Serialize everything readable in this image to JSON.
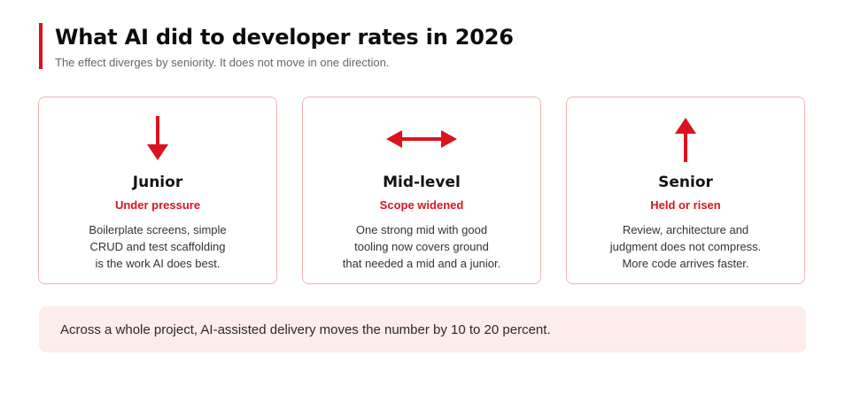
{
  "header": {
    "title": "What AI did to developer rates in 2026",
    "subtitle": "The effect diverges by seniority. It does not move in one direction."
  },
  "colors": {
    "accent": "#d9141e",
    "card_border": "#f0b3b5",
    "callout_bg": "#fdecec"
  },
  "cards": [
    {
      "icon": "arrow-down-icon",
      "label": "Junior",
      "status": "Under pressure",
      "lines": [
        "Boilerplate screens, simple",
        "CRUD and test scaffolding",
        "is the work AI does best."
      ]
    },
    {
      "icon": "arrow-left-right-icon",
      "label": "Mid-level",
      "status": "Scope widened",
      "lines": [
        "One strong mid with good",
        "tooling now covers ground",
        "that needed a mid and a junior."
      ]
    },
    {
      "icon": "arrow-up-icon",
      "label": "Senior",
      "status": "Held or risen",
      "lines": [
        "Review, architecture and",
        "judgment does not compress.",
        "More code arrives faster."
      ]
    }
  ],
  "callout": {
    "text": "Across a whole project, AI-assisted delivery moves the number by 10 to 20 percent."
  }
}
